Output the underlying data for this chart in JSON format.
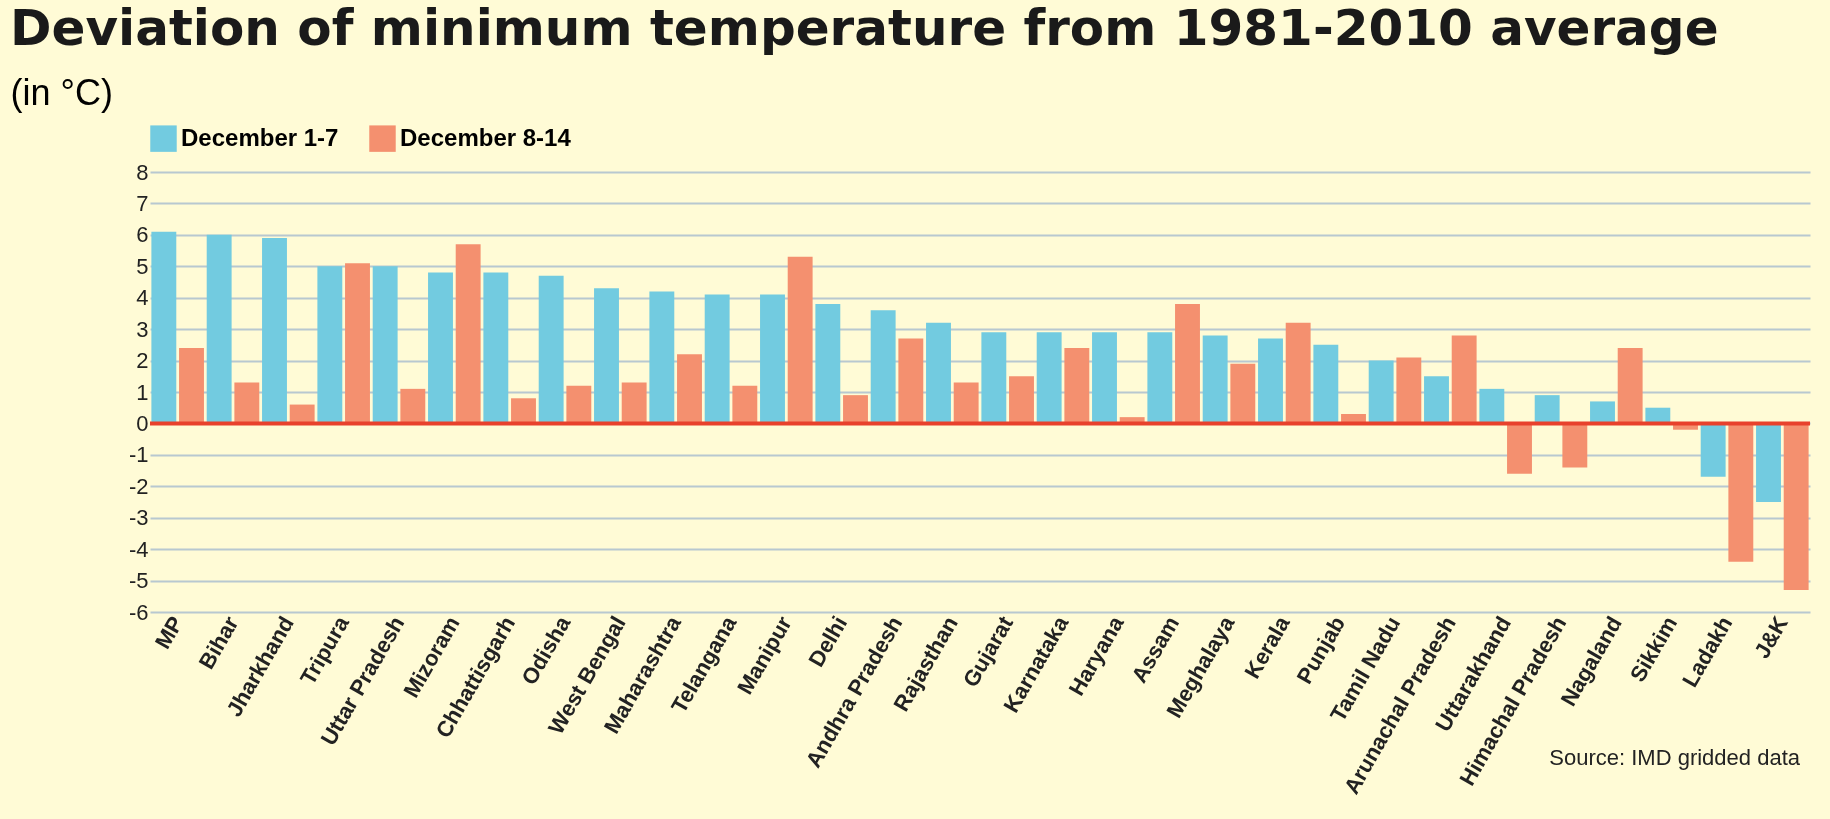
{
  "chart_data": {
    "type": "bar",
    "title": "Deviation of minimum temperature from  1981-2010 average",
    "ylabel": "(in °C)",
    "categories": [
      "MP",
      "Bihar",
      "Jharkhand",
      "Tripura",
      "Uttar Pradesh",
      "Mizoram",
      "Chhattisgarh",
      "Odisha",
      "West Bengal",
      "Maharashtra",
      "Telangana",
      "Manipur",
      "Delhi",
      "Andhra Pradesh",
      "Rajasthan",
      "Gujarat",
      "Karnataka",
      "Haryana",
      "Assam",
      "Meghalaya",
      "Kerala",
      "Punjab",
      "Tamil Nadu",
      "Arunachal Pradesh",
      "Uttarakhand",
      "Himachal Pradesh",
      "Nagaland",
      "Sikkim",
      "Ladakh",
      "J&K"
    ],
    "series": [
      {
        "name": "December 1-7",
        "color": "#72cbe0",
        "values": [
          6.1,
          6.0,
          5.9,
          5.0,
          5.0,
          4.8,
          4.8,
          4.7,
          4.3,
          4.2,
          4.1,
          4.1,
          3.8,
          3.6,
          3.2,
          2.9,
          2.9,
          2.9,
          2.9,
          2.8,
          2.7,
          2.5,
          2.0,
          1.5,
          1.1,
          0.9,
          0.7,
          0.5,
          -1.7,
          -2.5
        ]
      },
      {
        "name": "December 8-14",
        "color": "#f4906f",
        "values": [
          2.4,
          1.3,
          0.6,
          5.1,
          1.1,
          5.7,
          0.8,
          1.2,
          1.3,
          2.2,
          1.2,
          5.3,
          0.9,
          2.7,
          1.3,
          1.5,
          2.4,
          0.2,
          3.8,
          1.9,
          3.2,
          0.3,
          2.1,
          2.8,
          -1.6,
          -1.4,
          2.4,
          -0.2,
          -4.4,
          -5.3
        ]
      }
    ],
    "ylim": [
      -6,
      8
    ],
    "yticks": [
      -6,
      -5,
      -4,
      -3,
      -2,
      -1,
      0,
      1,
      2,
      3,
      4,
      5,
      6,
      7,
      8
    ],
    "grid": "y",
    "legend": "top",
    "ref_lines": [
      {
        "axis": "y",
        "value": 0,
        "color": "#e8412c"
      }
    ],
    "annotations": [
      "Source: IMD gridded data"
    ]
  }
}
